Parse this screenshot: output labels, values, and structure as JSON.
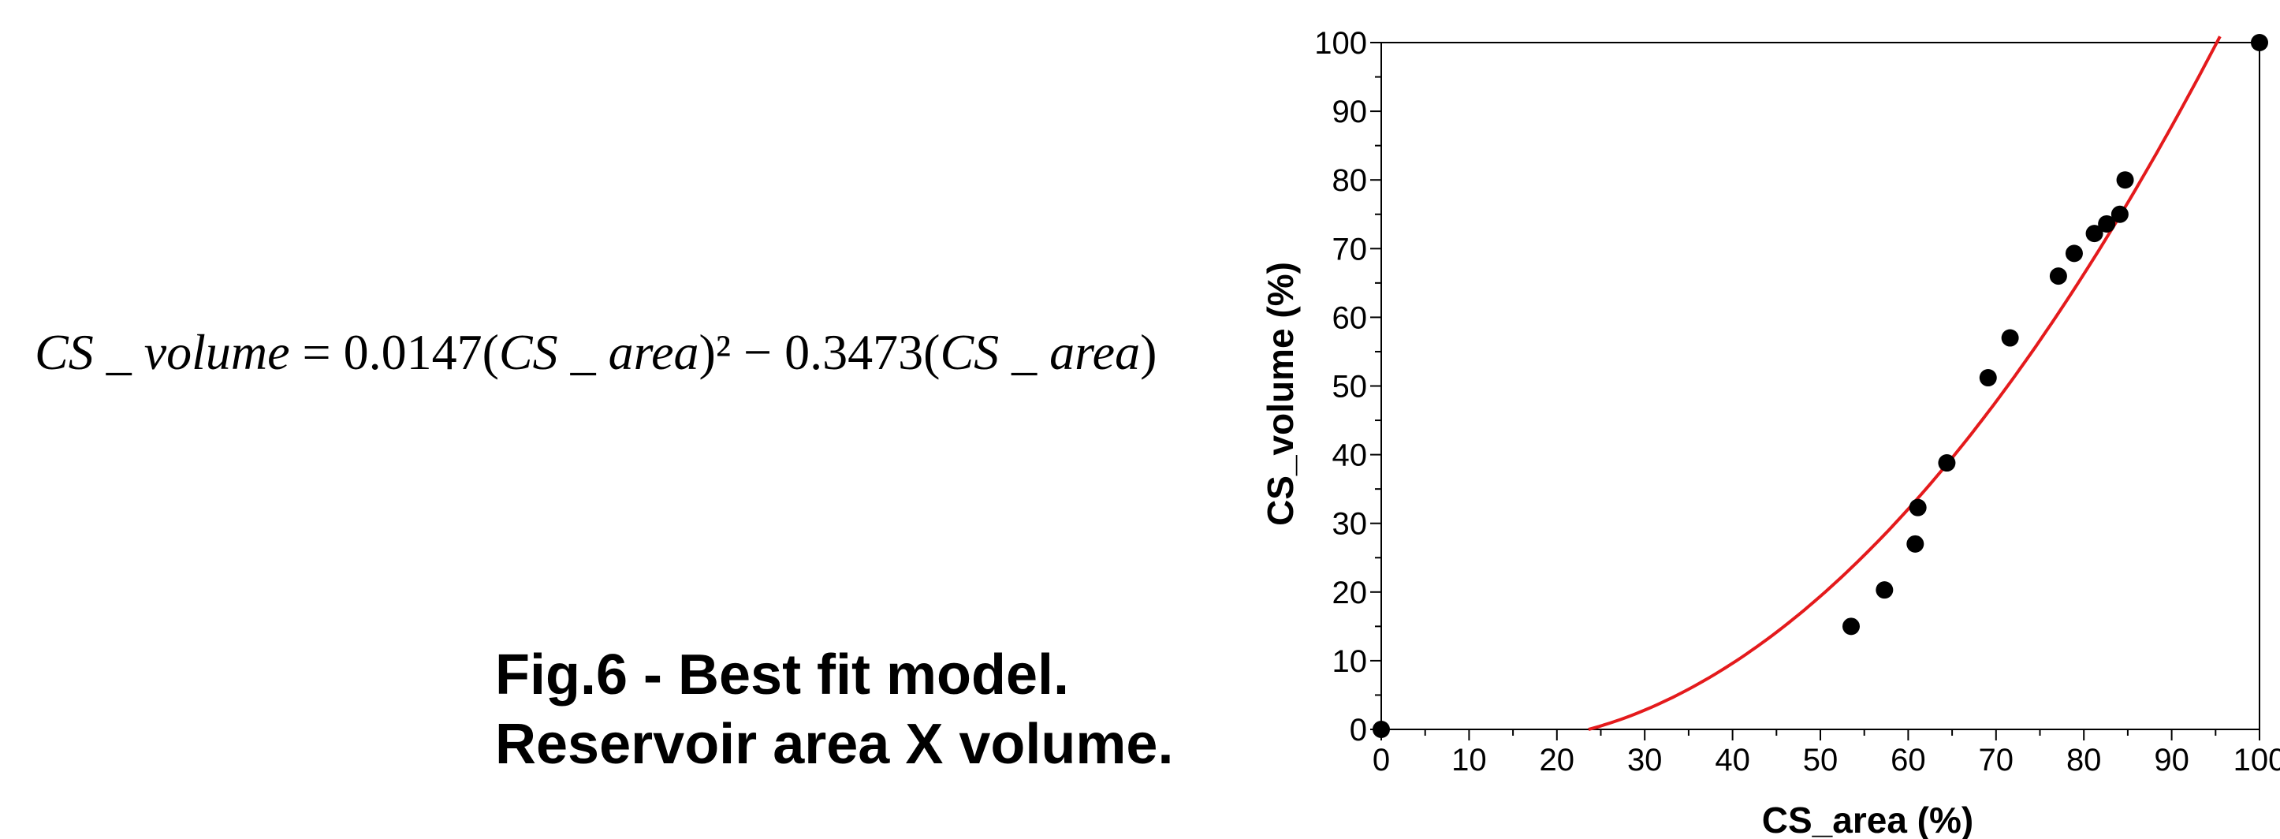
{
  "equation": {
    "lhs_var": "CS _ volume",
    "equals": " = 0.0147(",
    "var_a": "CS _ area",
    "sq_minus": ")² − 0.3473(",
    "var_b": "CS _ area",
    "close": ")"
  },
  "caption": {
    "line1": "Fig.6 - Best fit model.",
    "line2": "Reservoir area X volume."
  },
  "chart_data": {
    "type": "scatter",
    "xlabel": "CS_area (%)",
    "ylabel": "CS_volume (%)",
    "xlim": [
      0,
      100
    ],
    "ylim": [
      0,
      100
    ],
    "xticks": [
      0,
      10,
      20,
      30,
      40,
      50,
      60,
      70,
      80,
      90,
      100
    ],
    "yticks": [
      0,
      10,
      20,
      30,
      40,
      50,
      60,
      70,
      80,
      90,
      100
    ],
    "tick_labels_x": [
      "0",
      "10",
      "20",
      "30",
      "40",
      "50",
      "60",
      "70",
      "80",
      "90",
      "100"
    ],
    "tick_labels_y": [
      "0",
      "10",
      "20",
      "30",
      "40",
      "50",
      "60",
      "70",
      "80",
      "90",
      "100"
    ],
    "grid": false,
    "points": [
      {
        "x": 0,
        "y": 0
      },
      {
        "x": 53.5,
        "y": 15
      },
      {
        "x": 57.3,
        "y": 20.3
      },
      {
        "x": 60.8,
        "y": 27
      },
      {
        "x": 61.1,
        "y": 32.3
      },
      {
        "x": 64.4,
        "y": 38.8
      },
      {
        "x": 69.1,
        "y": 51.2
      },
      {
        "x": 71.6,
        "y": 57
      },
      {
        "x": 77.1,
        "y": 66
      },
      {
        "x": 78.9,
        "y": 69.3
      },
      {
        "x": 81.2,
        "y": 72.2
      },
      {
        "x": 82.6,
        "y": 73.6
      },
      {
        "x": 84.1,
        "y": 75
      },
      {
        "x": 84.7,
        "y": 80
      },
      {
        "x": 100,
        "y": 100
      }
    ],
    "fit": {
      "a2": 0.0147,
      "a1": -0.3473,
      "x_range": [
        23.6,
        95.5
      ],
      "color": "#e41a1c"
    },
    "marker_color": "#000000"
  }
}
